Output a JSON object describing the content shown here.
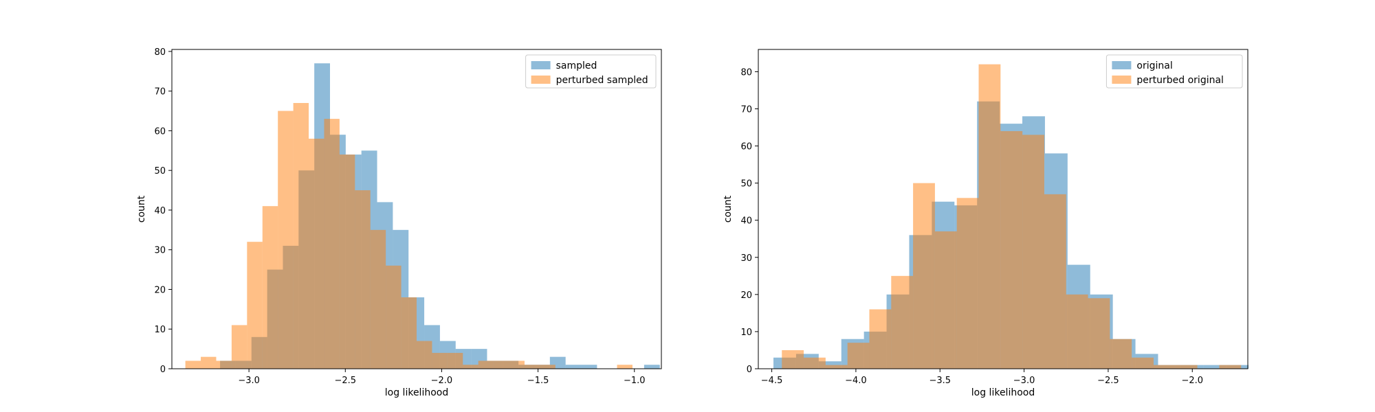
{
  "colors": {
    "series_a": "#1f77b4",
    "series_b": "#ff7f0e",
    "axes": "#000000",
    "background": "#ffffff"
  },
  "chart_data": [
    {
      "type": "histogram",
      "title": "",
      "xlabel": "log likelihood",
      "ylabel": "count",
      "xlim": [
        -3.4,
        -0.86
      ],
      "ylim": [
        0,
        80.5
      ],
      "xticks": [
        -3.0,
        -2.5,
        -2.0,
        -1.5,
        -1.0
      ],
      "xtick_labels": [
        "−3.0",
        "−2.5",
        "−2.0",
        "−1.5",
        "−1.0"
      ],
      "yticks": [
        0,
        10,
        20,
        30,
        40,
        50,
        60,
        70,
        80
      ],
      "ytick_labels": [
        "0",
        "10",
        "20",
        "30",
        "40",
        "50",
        "60",
        "70",
        "80"
      ],
      "legend_position": "top-right",
      "series": [
        {
          "name": "sampled",
          "color": "#1f77b4",
          "opacity": 0.5,
          "bin_start": -3.15,
          "bin_width": 0.0815,
          "counts": [
            2,
            2,
            8,
            25,
            31,
            50,
            77,
            59,
            54,
            55,
            42,
            35,
            18,
            11,
            7,
            5,
            5,
            2,
            2,
            1,
            1,
            3,
            1,
            1,
            0,
            0,
            0,
            1
          ]
        },
        {
          "name": "perturbed sampled",
          "color": "#ff7f0e",
          "opacity": 0.5,
          "bin_start": -3.33,
          "bin_width": 0.08,
          "counts": [
            2,
            3,
            2,
            11,
            32,
            41,
            65,
            67,
            58,
            63,
            54,
            45,
            35,
            26,
            18,
            7,
            4,
            4,
            1,
            2,
            2,
            2,
            1,
            1,
            0,
            0,
            0,
            0,
            1
          ]
        }
      ]
    },
    {
      "type": "histogram",
      "title": "",
      "xlabel": "log likelihood",
      "ylabel": "count",
      "xlim": [
        -4.58,
        -1.67
      ],
      "ylim": [
        0,
        86
      ],
      "xticks": [
        -4.5,
        -4.0,
        -3.5,
        -3.0,
        -2.5,
        -2.0
      ],
      "xtick_labels": [
        "−4.5",
        "−4.0",
        "−3.5",
        "−3.0",
        "−2.5",
        "−2.0"
      ],
      "yticks": [
        0,
        10,
        20,
        30,
        40,
        50,
        60,
        70,
        80
      ],
      "ytick_labels": [
        "0",
        "10",
        "20",
        "30",
        "40",
        "50",
        "60",
        "70",
        "80"
      ],
      "legend_position": "top-right",
      "series": [
        {
          "name": "original",
          "color": "#1f77b4",
          "opacity": 0.5,
          "bin_start": -4.49,
          "bin_width": 0.1345,
          "counts": [
            3,
            4,
            2,
            8,
            10,
            20,
            36,
            45,
            44,
            72,
            66,
            68,
            58,
            28,
            20,
            8,
            4,
            1,
            1,
            1,
            1
          ]
        },
        {
          "name": "perturbed original",
          "color": "#ff7f0e",
          "opacity": 0.5,
          "bin_start": -4.44,
          "bin_width": 0.13,
          "counts": [
            5,
            3,
            1,
            7,
            16,
            25,
            50,
            37,
            46,
            82,
            64,
            63,
            47,
            20,
            19,
            8,
            3,
            1,
            1,
            0,
            1
          ]
        }
      ]
    }
  ]
}
